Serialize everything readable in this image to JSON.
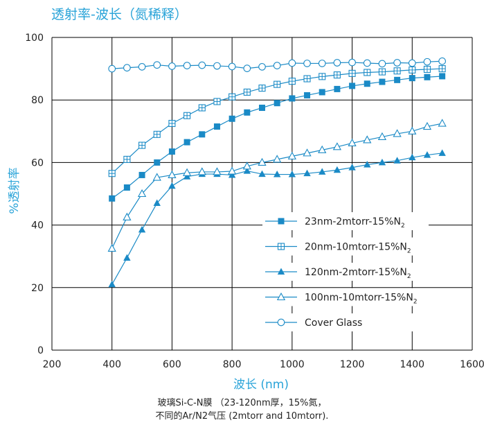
{
  "chart_data": {
    "type": "line",
    "title": "透射率-波长（氮稀释）",
    "xlabel": "波长 (nm)",
    "ylabel": "%透射率",
    "xlim": [
      200,
      1600
    ],
    "ylim": [
      0,
      100
    ],
    "xticks": [
      "200",
      "400",
      "600",
      "800",
      "1000",
      "1200",
      "1400",
      "1600"
    ],
    "yticks": [
      "0",
      "20",
      "40",
      "60",
      "80",
      "100"
    ],
    "grid": true,
    "legend_position": "bottom-right",
    "x": [
      400,
      450,
      500,
      550,
      600,
      650,
      700,
      750,
      800,
      850,
      900,
      950,
      1000,
      1050,
      1100,
      1150,
      1200,
      1250,
      1300,
      1350,
      1400,
      1450,
      1500
    ],
    "series": [
      {
        "name": "23nm-2mtorr-15%N",
        "subscript": "2",
        "marker": "square-filled",
        "values": [
          48.5,
          52,
          56,
          60,
          63.5,
          66.5,
          69,
          71.5,
          74,
          76,
          77.5,
          79,
          80.5,
          81.5,
          82.5,
          83.5,
          84.5,
          85.2,
          85.8,
          86.4,
          87,
          87.3,
          87.6
        ]
      },
      {
        "name": "20nm-10mtorr-15%N",
        "subscript": "2",
        "marker": "square-crossed",
        "values": [
          56.5,
          61,
          65.5,
          69,
          72.5,
          75,
          77.5,
          79.5,
          81,
          82.5,
          83.8,
          85,
          86,
          86.8,
          87.5,
          88,
          88.5,
          88.8,
          89,
          89.3,
          89.6,
          89.8,
          90
        ]
      },
      {
        "name": "120nm-2mtorr-15%N",
        "subscript": "2",
        "marker": "triangle-filled",
        "values": [
          21,
          29.5,
          38.5,
          47,
          52.5,
          55.5,
          56.3,
          56.3,
          56,
          57.3,
          56.3,
          56.2,
          56.2,
          56.5,
          57,
          57.6,
          58.4,
          59.3,
          60,
          60.6,
          61.6,
          62.4,
          63
        ]
      },
      {
        "name": "100nm-10mtorr-15%N",
        "subscript": "2",
        "marker": "triangle-open",
        "values": [
          32.5,
          42.5,
          50,
          55.2,
          56,
          56.7,
          57,
          57,
          57.2,
          58.8,
          60,
          61,
          62,
          63,
          64,
          65,
          66.2,
          67.2,
          68.2,
          69.2,
          70,
          71.5,
          72.5
        ]
      },
      {
        "name": "Cover Glass",
        "subscript": "",
        "marker": "circle-open",
        "values": [
          90,
          90.3,
          90.6,
          91.2,
          90.8,
          91,
          91.1,
          90.9,
          90.7,
          90.1,
          90.6,
          91,
          91.8,
          91.7,
          91.7,
          91.9,
          92,
          91.8,
          91.6,
          91.9,
          91.8,
          92.2,
          92.4
        ]
      }
    ],
    "line_color": "#1a8ac6",
    "grid_color": "#000000"
  },
  "caption": {
    "line1": "玻璃Si-C-N膜 （23-120nm厚，15%氮，",
    "line2": "不同的Ar/N2气压 (2mtorr and 10mtorr)."
  }
}
